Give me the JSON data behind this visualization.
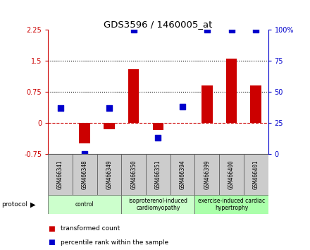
{
  "title": "GDS3596 / 1460005_at",
  "samples": [
    "GSM466341",
    "GSM466348",
    "GSM466349",
    "GSM466350",
    "GSM466351",
    "GSM466394",
    "GSM466399",
    "GSM466400",
    "GSM466401"
  ],
  "transformed_count": [
    0.0,
    -0.5,
    -0.15,
    1.3,
    -0.18,
    0.0,
    0.9,
    1.55,
    0.9
  ],
  "percentile_rank": [
    37,
    0,
    37,
    100,
    13,
    38,
    100,
    100,
    100
  ],
  "ylim_left": [
    -0.75,
    2.25
  ],
  "ylim_right": [
    0,
    100
  ],
  "yticks_left": [
    -0.75,
    0,
    0.75,
    1.5,
    2.25
  ],
  "yticks_right": [
    0,
    25,
    50,
    75,
    100
  ],
  "hlines": [
    0.75,
    1.5
  ],
  "bar_color": "#cc0000",
  "dot_color": "#0000cc",
  "group_data": [
    {
      "label": "control",
      "indices": [
        0,
        1,
        2
      ],
      "color": "#ccffcc"
    },
    {
      "label": "isoproterenol-induced\ncardiomyopathy",
      "indices": [
        3,
        4,
        5
      ],
      "color": "#ccffcc"
    },
    {
      "label": "exercise-induced cardiac\nhypertrophy",
      "indices": [
        6,
        7,
        8
      ],
      "color": "#aaffaa"
    }
  ],
  "legend_items": [
    {
      "color": "#cc0000",
      "label": "transformed count"
    },
    {
      "color": "#0000cc",
      "label": "percentile rank within the sample"
    }
  ],
  "bg_color": "#ffffff",
  "axis_color_left": "#cc0000",
  "axis_color_right": "#0000cc",
  "sample_box_color": "#cccccc",
  "bar_width": 0.45,
  "dot_size": 28
}
